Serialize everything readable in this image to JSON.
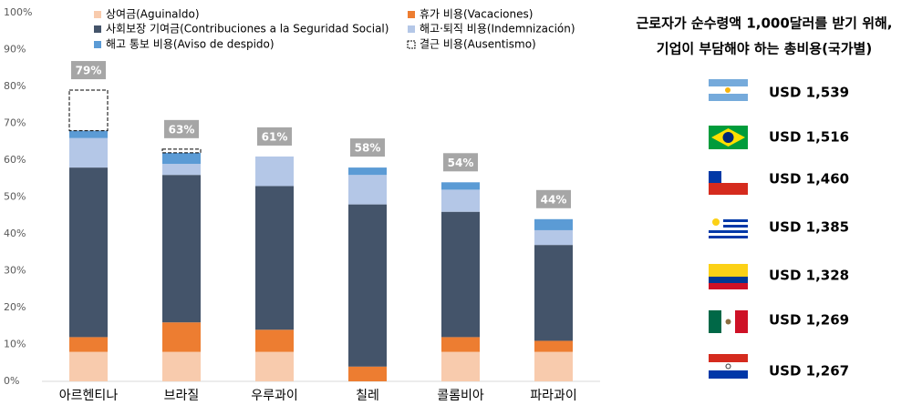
{
  "chart_data": {
    "type": "stacked_bar",
    "categories": [
      "아르헨티나",
      "브라질",
      "우루과이",
      "칠레",
      "콜롬비아",
      "파라과이"
    ],
    "series": [
      {
        "name": "상여금(Aguinaldo)",
        "color": "#f8cbad",
        "values": [
          8,
          8,
          8,
          0,
          8,
          8
        ]
      },
      {
        "name": "휴가 비용(Vacaciones)",
        "color": "#ed7d31",
        "values": [
          4,
          8,
          6,
          4,
          4,
          3
        ]
      },
      {
        "name": "사회보장 기여금(Contribuciones a la Seguridad Social)",
        "color": "#44546a",
        "values": [
          46,
          40,
          39,
          44,
          34,
          26
        ]
      },
      {
        "name": "해고·퇴직 비용(Indemnización)",
        "color": "#b4c7e7",
        "values": [
          8,
          3,
          8,
          8,
          6,
          4
        ]
      },
      {
        "name": "해고 통보 비용(Aviso de despido)",
        "color": "#5b9bd5",
        "values": [
          2,
          3,
          0,
          2,
          2,
          3
        ]
      },
      {
        "name": "결근 비용(Ausentismo)",
        "color": "#ffffff",
        "stroke": "#000000",
        "dashed": true,
        "values": [
          11,
          1,
          0,
          0,
          0,
          0
        ]
      }
    ],
    "totals": {
      "values": [
        79,
        63,
        61,
        58,
        54,
        44
      ],
      "value_labels": [
        "79%",
        "63%",
        "61%",
        "58%",
        "54%",
        "44%"
      ],
      "color": "#a6a6a6"
    },
    "ylim": [
      0,
      100
    ],
    "yticks": [
      {
        "value": 0,
        "label": "0%"
      },
      {
        "value": 10,
        "label": "10%"
      },
      {
        "value": 20,
        "label": "20%"
      },
      {
        "value": 30,
        "label": "30%"
      },
      {
        "value": 40,
        "label": "40%"
      },
      {
        "value": 50,
        "label": "50%"
      },
      {
        "value": 60,
        "label": "60%"
      },
      {
        "value": 70,
        "label": "70%"
      },
      {
        "value": 80,
        "label": "80%"
      },
      {
        "value": 90,
        "label": "90%"
      },
      {
        "value": 100,
        "label": "100%"
      }
    ],
    "grid": false
  },
  "cost_panel": {
    "title": [
      "근로자가 순수령액 1,000달러를 받기 위해,",
      "기업이 부담해야 하는 총비용(국가별)"
    ],
    "rows": [
      "USD 1,539",
      "USD 1,516",
      "USD 1,460",
      "USD 1,385",
      "USD 1,328",
      "USD 1,269",
      "USD 1,267"
    ]
  }
}
